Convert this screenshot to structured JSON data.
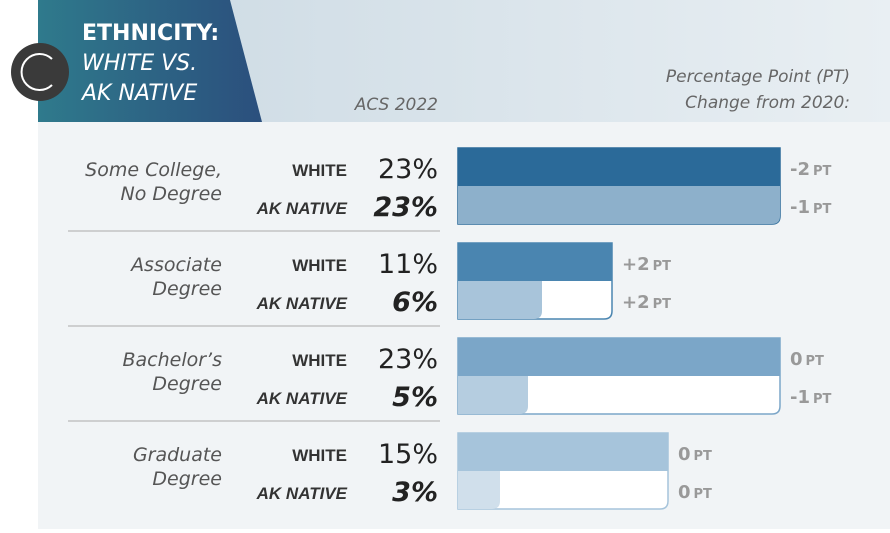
{
  "header": {
    "title_lines": [
      "ETHNICITY:",
      "WHITE VS.",
      "AK NATIVE"
    ],
    "source": "ACS 2022",
    "change_note_lines": [
      "Percentage Point (PT)",
      "Change from 2020:"
    ]
  },
  "chart_data": {
    "type": "bar",
    "orientation": "horizontal",
    "categories": [
      [
        "Some College,",
        "No Degree"
      ],
      [
        "Associate",
        "Degree"
      ],
      [
        "Bachelor’s",
        "Degree"
      ],
      [
        "Graduate",
        "Degree"
      ]
    ],
    "xlim": [
      0,
      23
    ],
    "change_unit": "PT",
    "series": [
      {
        "name": "WHITE",
        "colors": [
          "#2b6a99",
          "#4a85b0",
          "#7ba6c8",
          "#a6c4db"
        ],
        "values": [
          23,
          11,
          23,
          15
        ],
        "value_labels": [
          "23%",
          "11%",
          "23%",
          "15%"
        ],
        "changes": [
          -2,
          2,
          0,
          0
        ],
        "change_labels": [
          "-2",
          "+2",
          "0",
          "0"
        ]
      },
      {
        "name": "AK NATIVE",
        "colors": [
          "#8db0cb",
          "#a8c4da",
          "#b5cde0",
          "#d0dfeb"
        ],
        "values": [
          23,
          6,
          5,
          3
        ],
        "value_labels": [
          "23%",
          "6%",
          "5%",
          "3%"
        ],
        "changes": [
          -1,
          2,
          -1,
          0
        ],
        "change_labels": [
          "-1",
          "+2",
          "-1",
          "0"
        ]
      }
    ]
  }
}
